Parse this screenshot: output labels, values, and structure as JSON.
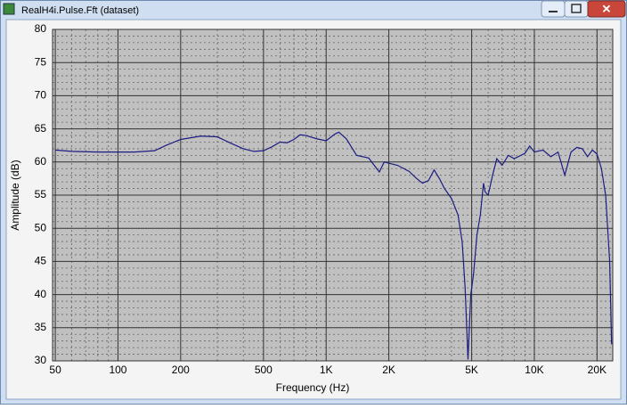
{
  "window": {
    "title": "RealH4i.Pulse.Fft (dataset)"
  },
  "chart_data": {
    "type": "line",
    "xlabel": "Frequency (Hz)",
    "ylabel": "Amplitude (dB)",
    "xscale": "log",
    "grid": true,
    "color": "#1c1c82",
    "xlim": [
      48.5,
      23800
    ],
    "ylim": [
      30,
      80
    ],
    "xticks": [
      50,
      100,
      200,
      500,
      {
        "value": 1000,
        "label": "1K"
      },
      {
        "value": 2000,
        "label": "2K"
      },
      {
        "value": 5000,
        "label": "5K"
      },
      {
        "value": 10000,
        "label": "10K"
      },
      {
        "value": 20000,
        "label": "20K"
      }
    ],
    "yticks": [
      30,
      35,
      40,
      45,
      50,
      55,
      60,
      65,
      70,
      75,
      80
    ],
    "x_minor_ticks": [
      60,
      70,
      80,
      90,
      300,
      400,
      600,
      700,
      800,
      900,
      3000,
      4000,
      6000,
      7000,
      8000,
      9000
    ],
    "y_minor_ticks": [
      31,
      32,
      33,
      34,
      36,
      37,
      38,
      39,
      41,
      42,
      43,
      44,
      46,
      47,
      48,
      49,
      51,
      52,
      53,
      54,
      56,
      57,
      58,
      59,
      61,
      62,
      63,
      64,
      66,
      67,
      68,
      69,
      71,
      72,
      73,
      74,
      76,
      77,
      78,
      79
    ],
    "x": [
      50,
      60,
      80,
      100,
      120,
      150,
      170,
      200,
      250,
      300,
      350,
      400,
      450,
      500,
      550,
      600,
      650,
      700,
      750,
      800,
      900,
      1000,
      1100,
      1150,
      1250,
      1400,
      1600,
      1800,
      1900,
      2200,
      2500,
      2700,
      2900,
      3100,
      3300,
      3500,
      3700,
      4000,
      4300,
      4500,
      4650,
      4800,
      4950,
      5100,
      5300,
      5500,
      5700,
      5800,
      6000,
      6300,
      6600,
      7000,
      7500,
      8000,
      9000,
      9500,
      10000,
      11000,
      12000,
      13000,
      14000,
      15000,
      16000,
      17000,
      18000,
      19000,
      20000,
      21000,
      22000,
      23000,
      23500
    ],
    "values": [
      61.8,
      61.6,
      61.5,
      61.5,
      61.5,
      61.7,
      62.5,
      63.4,
      63.9,
      63.8,
      62.8,
      62.0,
      61.6,
      61.7,
      62.3,
      63.0,
      62.9,
      63.4,
      64.1,
      64.0,
      63.5,
      63.2,
      64.2,
      64.5,
      63.5,
      61.0,
      60.6,
      58.5,
      60.0,
      59.5,
      58.6,
      57.6,
      56.8,
      57.2,
      58.8,
      57.5,
      56.0,
      54.5,
      52.0,
      48.0,
      41.0,
      30.2,
      40.0,
      43.0,
      49.0,
      52.0,
      56.8,
      55.5,
      55.0,
      58.0,
      60.5,
      59.5,
      61.0,
      60.5,
      61.3,
      62.4,
      61.5,
      61.8,
      60.8,
      61.5,
      58.0,
      61.5,
      62.2,
      62.0,
      60.8,
      61.8,
      61.2,
      59.0,
      55.0,
      45.0,
      32.5
    ]
  }
}
